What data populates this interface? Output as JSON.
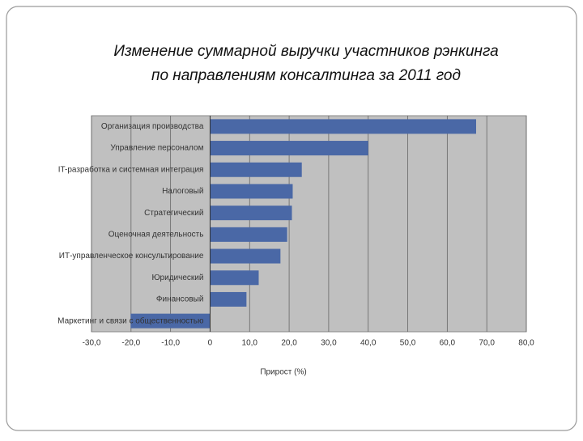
{
  "chart_data": {
    "type": "bar",
    "orientation": "horizontal",
    "title": [
      "Изменение суммарной выручки участников рэнкинга",
      "по направлениям консалтинга за 2011 год"
    ],
    "categories": [
      "Организация производства",
      "Управление персоналом",
      "IT-разработка и системная интеграция",
      "Налоговый",
      "Стратегический",
      "Оценочная деятельность",
      "ИТ-управленческое консультирование",
      "Юридический",
      "Финансовый",
      "Маркетинг и связи с общественностью"
    ],
    "values": [
      67.3,
      40.0,
      23.2,
      20.9,
      20.7,
      19.5,
      17.8,
      12.3,
      9.2,
      -20.1
    ],
    "color": "#4a68a6",
    "xlabel": "Прирост (%)",
    "xlim": [
      -30,
      80
    ],
    "xticks": [
      {
        "value": -30,
        "label": "-30,0"
      },
      {
        "value": -20,
        "label": "-20,0"
      },
      {
        "value": -10,
        "label": "-10,0"
      },
      0,
      {
        "value": 10,
        "label": "10,0"
      },
      {
        "value": 20,
        "label": "20,0"
      },
      {
        "value": 30,
        "label": "30,0"
      },
      {
        "value": 40,
        "label": "40,0"
      },
      {
        "value": 50,
        "label": "50,0"
      },
      {
        "value": 60,
        "label": "60,0"
      },
      {
        "value": 70,
        "label": "70,0"
      },
      {
        "value": 80,
        "label": "80,0"
      }
    ],
    "grid": true
  }
}
